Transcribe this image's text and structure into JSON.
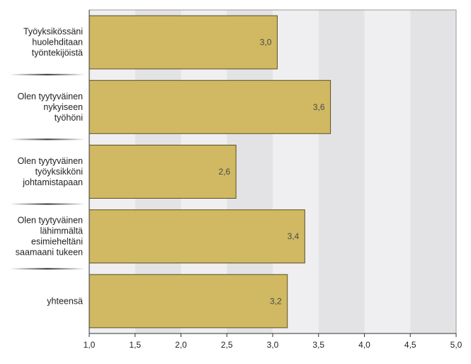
{
  "chart_data": {
    "type": "bar",
    "orientation": "horizontal",
    "categories": [
      [
        "Työyksikössäni",
        "huolehditaan",
        "työntekijöistä"
      ],
      [
        "Olen tyytyväinen",
        "nykyiseen",
        "työhöni"
      ],
      [
        "Olen tyytyväinen",
        "työyksikköni",
        "johtamistapaan"
      ],
      [
        "Olen tyytyväinen",
        "lähimmältä",
        "esimieheltäni",
        "saamaani tukeen"
      ],
      [
        "yhteensä"
      ]
    ],
    "values": [
      3.05,
      3.63,
      2.6,
      3.35,
      3.16
    ],
    "value_labels": [
      "3,0",
      "3,6",
      "2,6",
      "3,4",
      "3,2"
    ],
    "xlim": [
      1.0,
      5.0
    ],
    "x_ticks": [
      1.0,
      1.5,
      2.0,
      2.5,
      3.0,
      3.5,
      4.0,
      4.5,
      5.0
    ],
    "x_tick_labels": [
      "1,0",
      "1,5",
      "2,0",
      "2,5",
      "3,0",
      "3,5",
      "4,0",
      "4,5",
      "5,0"
    ],
    "title": "",
    "xlabel": "",
    "ylabel": "",
    "grid": true,
    "legend": "none",
    "colors": {
      "bar_fill": "#d0b962",
      "bar_stroke": "#5a5022",
      "band_light": "#efeff1",
      "band_dark": "#e3e3e6",
      "axis": "#333333"
    }
  }
}
